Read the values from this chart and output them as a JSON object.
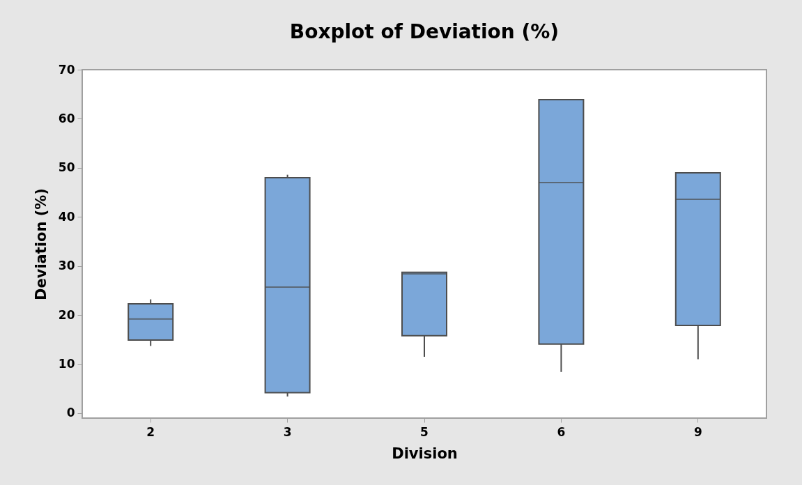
{
  "chart_data": {
    "type": "box",
    "title": "Boxplot of Deviation (%)",
    "xlabel": "Division",
    "ylabel": "Deviation (%)",
    "categories": [
      "2",
      "3",
      "5",
      "6",
      "9"
    ],
    "series": [
      {
        "color": "#7ba7d9",
        "boxes": [
          {
            "low": 13.7,
            "q1": 14.9,
            "median": 19.2,
            "q3": 22.3,
            "high": 23.2
          },
          {
            "low": 3.4,
            "q1": 4.2,
            "median": 25.7,
            "q3": 48.0,
            "high": 48.6
          },
          {
            "low": 11.5,
            "q1": 15.8,
            "median": 28.4,
            "q3": 28.7,
            "high": 28.7
          },
          {
            "low": 8.4,
            "q1": 14.1,
            "median": 47.0,
            "q3": 63.9,
            "high": 63.9
          },
          {
            "low": 11.0,
            "q1": 17.9,
            "median": 43.6,
            "q3": 49.0,
            "high": 49.0
          }
        ]
      }
    ],
    "ylim": [
      -1,
      70
    ],
    "yticks": [
      0,
      10,
      20,
      30,
      40,
      50,
      60,
      70
    ]
  }
}
